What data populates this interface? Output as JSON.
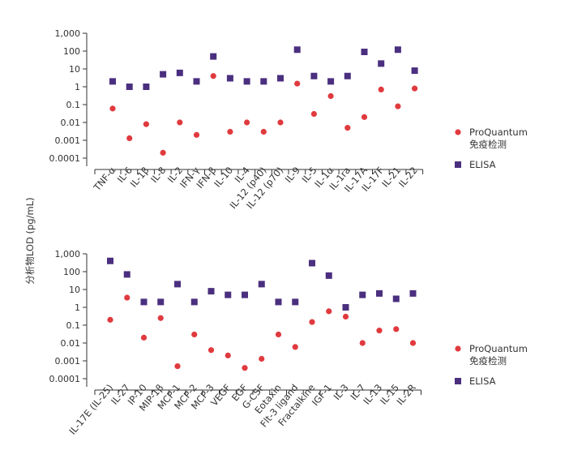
{
  "colors": {
    "proquantum": "#e03a3e",
    "elisa": "#4b2f7f",
    "axis": "#333333"
  },
  "chart_data": [
    {
      "type": "scatter",
      "y_scale": "log",
      "ylim": [
        0.0001,
        1000
      ],
      "ytick_labels": [
        "1,000",
        "100",
        "10",
        "1",
        "0.1",
        "0.01",
        "0.001",
        "0.0001"
      ],
      "ylabel": "分析物LOD (pg/mL)",
      "categories": [
        "TNF-α",
        "IL-6",
        "IL-1β",
        "IL-8",
        "IL-2",
        "IFN-γ",
        "IFN-β",
        "IL-10",
        "IL-4",
        "IL-12 (p40)",
        "IL-12 (p70)",
        "IL-9",
        "IL-5",
        "IL-1α",
        "IL-1ra",
        "IL-17A",
        "IL-17F",
        "IL-21",
        "IL-22"
      ],
      "legend_position": "right",
      "series": [
        {
          "name": "ProQuantum\n免疫检测",
          "marker": "circle",
          "values": [
            0.06,
            0.0013,
            0.008,
            0.0002,
            0.01,
            0.002,
            4,
            0.003,
            0.01,
            0.003,
            0.01,
            1.5,
            0.03,
            0.3,
            0.005,
            0.02,
            0.7,
            0.08,
            0.8
          ]
        },
        {
          "name": "ELISA",
          "marker": "square",
          "values": [
            2,
            1,
            1,
            5,
            6,
            2,
            50,
            3,
            2,
            2,
            3,
            120,
            4,
            2,
            4,
            90,
            20,
            120,
            8
          ]
        }
      ]
    },
    {
      "type": "scatter",
      "y_scale": "log",
      "ylim": [
        0.0001,
        1000
      ],
      "ytick_labels": [
        "1,000",
        "100",
        "10",
        "1",
        "0.1",
        "0.01",
        "0.001",
        "0.0001"
      ],
      "categories": [
        "IL-17E (IL-25)",
        "IL-27",
        "IP-10",
        "MIP-1β",
        "MCP-1",
        "MCP-2",
        "MCP-3",
        "VEGF",
        "EGF",
        "G-CSF",
        "Eotaxin",
        "Flt-3 ligand",
        "Fractalkine",
        "IGF-1",
        "IL-3",
        "IL-7",
        "IL-13",
        "IL-15",
        "IL-2R"
      ],
      "legend_position": "right",
      "series": [
        {
          "name": "ProQuantum\n免疫检测",
          "marker": "circle",
          "values": [
            0.2,
            3.5,
            0.02,
            0.25,
            0.0005,
            0.03,
            0.004,
            0.002,
            0.0004,
            0.0013,
            0.03,
            0.006,
            0.15,
            0.6,
            0.3,
            0.01,
            0.05,
            0.06,
            0.01
          ]
        },
        {
          "name": "ELISA",
          "marker": "square",
          "values": [
            400,
            70,
            2,
            2,
            20,
            2,
            8,
            5,
            5,
            20,
            2,
            2,
            300,
            60,
            1,
            5,
            6,
            3,
            6
          ]
        }
      ]
    }
  ]
}
